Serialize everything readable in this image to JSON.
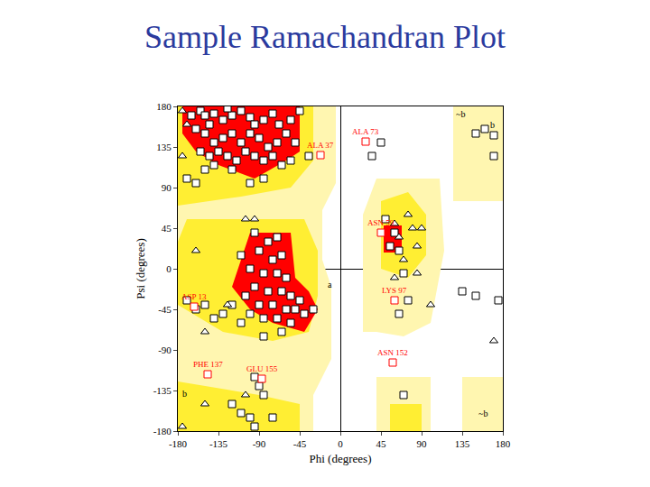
{
  "chart_data": {
    "type": "scatter",
    "title": "Sample Ramachandran Plot",
    "x_label": "Phi (degrees)",
    "y_label": "Psi (degrees)",
    "xlim": [
      -180,
      180
    ],
    "ylim": [
      -180,
      180
    ],
    "xticks": [
      -180,
      -135,
      -90,
      -45,
      0,
      45,
      90,
      135,
      180
    ],
    "yticks": [
      -180,
      -135,
      -90,
      -45,
      0,
      45,
      90,
      135,
      180
    ],
    "grid": false,
    "regions": [
      {
        "color": "#fff6b0",
        "polygons": [
          {
            "x": [
              -180,
              -180,
              -5,
              -5,
              -20,
              -20,
              -10,
              -10,
              -30,
              -30,
              -180
            ],
            "y": [
              -180,
              180,
              180,
              95,
              65,
              10,
              -20,
              -100,
              -140,
              -180,
              -180
            ]
          },
          {
            "x": [
              25,
              25,
              40,
              110,
              115,
              100,
              70,
              40
            ],
            "y": [
              -70,
              60,
              100,
              100,
              20,
              -60,
              -75,
              -70
            ]
          },
          {
            "x": [
              125,
              125,
              180,
              180
            ],
            "y": [
              75,
              180,
              180,
              75
            ]
          },
          {
            "x": [
              135,
              135,
              180,
              180
            ],
            "y": [
              -180,
              -120,
              -120,
              -180
            ]
          },
          {
            "x": [
              40,
              40,
              100,
              100
            ],
            "y": [
              -180,
              -120,
              -120,
              -180
            ]
          }
        ]
      },
      {
        "color": "#ffee33",
        "polygons": [
          {
            "x": [
              -180,
              -180,
              -30,
              -30,
              -55,
              -110,
              -180
            ],
            "y": [
              70,
              180,
              180,
              120,
              90,
              80,
              70
            ]
          },
          {
            "x": [
              -180,
              -170,
              -40,
              -25,
              -25,
              -35,
              -75,
              -130,
              -180
            ],
            "y": [
              30,
              55,
              55,
              20,
              -30,
              -70,
              -80,
              -70,
              -40
            ]
          },
          {
            "x": [
              -180,
              -180,
              -45,
              -45,
              -90
            ],
            "y": [
              -125,
              -180,
              -180,
              -150,
              -140
            ]
          },
          {
            "x": [
              45,
              45,
              75,
              95,
              95,
              75
            ],
            "y": [
              0,
              75,
              85,
              60,
              15,
              -10
            ]
          },
          {
            "x": [
              55,
              55,
              90,
              90
            ],
            "y": [
              -180,
              -150,
              -150,
              -180
            ]
          }
        ]
      },
      {
        "color": "#ff0000",
        "polygons": [
          {
            "x": [
              -175,
              -175,
              -45,
              -45,
              -60,
              -95,
              -135,
              -160
            ],
            "y": [
              150,
              180,
              180,
              130,
              120,
              100,
              115,
              130
            ]
          },
          {
            "x": [
              -110,
              -100,
              -55,
              -50,
              -35,
              -25,
              -40,
              -75,
              -100,
              -120
            ],
            "y": [
              10,
              40,
              40,
              -10,
              -25,
              -45,
              -70,
              -60,
              -45,
              -20
            ]
          },
          {
            "x": [
              48,
              48,
              55,
              68,
              68
            ],
            "y": [
              18,
              48,
              48,
              48,
              18
            ]
          }
        ]
      }
    ],
    "series": [
      {
        "marker": "square",
        "color": "#000000",
        "x": [
          -165,
          -155,
          -145,
          -140,
          -130,
          -120,
          -110,
          -100,
          -95,
          -85,
          -75,
          -68,
          -60,
          -70,
          -80,
          -90,
          -100,
          -110,
          -120,
          -130,
          -140,
          -150,
          -160,
          -155,
          -145,
          -135,
          -125,
          -115,
          -105,
          -95,
          -85,
          -75,
          -150,
          -140,
          -120,
          -65,
          -55,
          -170,
          -160,
          -100,
          -85,
          -55,
          -50,
          -45,
          -35,
          -150,
          -125,
          -95,
          -80,
          -70,
          -110,
          -90,
          -75,
          -65,
          -100,
          -85,
          -70,
          -60,
          -95,
          -80,
          -65,
          -55,
          -45,
          -105,
          -90,
          -75,
          -60,
          -50,
          -100,
          -85,
          -70,
          -55,
          -40,
          -30,
          -120,
          -130,
          -110,
          -65,
          -85,
          -150,
          -160,
          -170,
          -140,
          -95,
          -90,
          -85,
          -100,
          -95,
          -110,
          -120,
          -75,
          45,
          35,
          50,
          60,
          55,
          65,
          70,
          75,
          65,
          150,
          160,
          170,
          170,
          135,
          150,
          175,
          70
        ],
        "y": [
          170,
          175,
          160,
          172,
          165,
          170,
          175,
          168,
          160,
          165,
          172,
          160,
          150,
          140,
          135,
          145,
          150,
          140,
          150,
          145,
          140,
          150,
          155,
          130,
          125,
          130,
          125,
          120,
          130,
          125,
          120,
          125,
          110,
          115,
          110,
          115,
          120,
          100,
          95,
          95,
          100,
          165,
          140,
          175,
          125,
          170,
          178,
          40,
          30,
          35,
          15,
          20,
          10,
          15,
          0,
          -5,
          -5,
          -10,
          -20,
          -25,
          -25,
          -30,
          -35,
          -30,
          -40,
          -40,
          -45,
          -45,
          -50,
          -55,
          -55,
          -60,
          -50,
          -45,
          -40,
          -50,
          -60,
          -70,
          -75,
          -40,
          -45,
          -35,
          -55,
          -120,
          -130,
          -140,
          -165,
          -175,
          -160,
          -150,
          -165,
          140,
          125,
          55,
          40,
          25,
          20,
          -5,
          -35,
          -50,
          150,
          155,
          148,
          125,
          -25,
          -30,
          -35,
          -140
        ]
      },
      {
        "marker": "triangle",
        "color": "#000000",
        "x": [
          -175,
          -170,
          -175,
          -150,
          -125,
          60,
          65,
          75,
          80,
          85,
          70,
          60,
          85,
          90,
          100,
          -105,
          -95,
          -160,
          170,
          -150,
          -105,
          -175
        ],
        "y": [
          175,
          160,
          -175,
          -150,
          -40,
          50,
          35,
          60,
          45,
          25,
          10,
          -10,
          -5,
          45,
          -40,
          55,
          55,
          20,
          -80,
          -70,
          -140,
          125
        ]
      },
      {
        "marker": "square",
        "color": "#ff0000",
        "x": [
          28,
          -22,
          45,
          58,
          -87,
          -147,
          60,
          -162
        ],
        "y": [
          141,
          126,
          40,
          -104,
          -122,
          -117,
          -35,
          -42
        ],
        "labels": [
          "ALA 73",
          "ALA 37",
          "ASN 59",
          "ASN 152",
          "GLU 155",
          "PHE 137",
          "LYS 97",
          "ASP 13"
        ]
      }
    ],
    "annotations": [
      {
        "x": 168,
        "y": 160,
        "text": "b"
      },
      {
        "x": 133,
        "y": 172,
        "text": "~b"
      },
      {
        "x": 158,
        "y": -160,
        "text": "~b"
      },
      {
        "x": -12,
        "y": -17,
        "text": "a"
      },
      {
        "x": -173,
        "y": -138,
        "text": "b"
      }
    ]
  }
}
